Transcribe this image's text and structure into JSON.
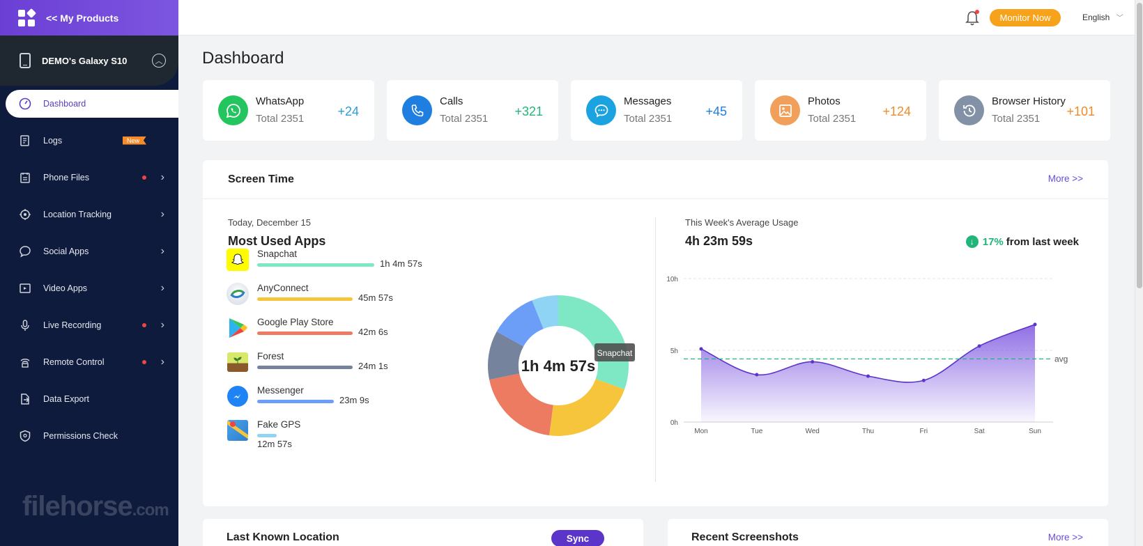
{
  "brand": {
    "title": "<< My Products"
  },
  "device": {
    "name": "DEMO's Galaxy S10"
  },
  "nav": [
    {
      "label": "Dashboard",
      "icon": "speedometer-icon",
      "active": true
    },
    {
      "label": "Logs",
      "icon": "log-icon",
      "badge": "New"
    },
    {
      "label": "Phone Files",
      "icon": "file-icon",
      "dot": true,
      "arrow": true
    },
    {
      "label": "Location Tracking",
      "icon": "location-icon",
      "arrow": true
    },
    {
      "label": "Social Apps",
      "icon": "chat-bubble-icon",
      "arrow": true
    },
    {
      "label": "Video Apps",
      "icon": "video-icon",
      "arrow": true
    },
    {
      "label": "Live Recording",
      "icon": "microphone-icon",
      "dot": true,
      "arrow": true
    },
    {
      "label": "Remote Control",
      "icon": "remote-icon",
      "dot": true,
      "arrow": true
    },
    {
      "label": "Data Export",
      "icon": "export-icon"
    },
    {
      "label": "Permissions Check",
      "icon": "shield-icon"
    }
  ],
  "watermark": {
    "text": "filehorse",
    "suffix": ".com"
  },
  "topbar": {
    "monitor_label": "Monitor Now",
    "language": "English"
  },
  "page_title": "Dashboard",
  "stats": [
    {
      "name": "WhatsApp",
      "total": "Total 2351",
      "delta": "+24",
      "color": "#22c55e",
      "delta_color": "#2a9fd8",
      "icon": "whatsapp-icon"
    },
    {
      "name": "Calls",
      "total": "Total 2351",
      "delta": "+321",
      "color": "#1e7fe0",
      "delta_color": "#22b57a",
      "icon": "phone-icon"
    },
    {
      "name": "Messages",
      "total": "Total 2351",
      "delta": "+45",
      "color": "#1aa3e0",
      "delta_color": "#1e7fe0",
      "icon": "message-icon"
    },
    {
      "name": "Photos",
      "total": "Total 2351",
      "delta": "+124",
      "color": "#f0a05a",
      "delta_color": "#f08a2a",
      "icon": "photo-icon"
    },
    {
      "name": "Browser History",
      "total": "Total 2351",
      "delta": "+101",
      "color": "#8391a6",
      "delta_color": "#f08a2a",
      "icon": "history-icon"
    }
  ],
  "screen_time": {
    "title": "Screen Time",
    "more": "More >>",
    "today": "Today, December 15",
    "most_used_title": "Most Used Apps",
    "apps": [
      {
        "name": "Snapchat",
        "time": "1h 4m 57s",
        "color": "#7de8c3",
        "icon": "snapchat-icon"
      },
      {
        "name": "AnyConnect",
        "time": "45m 57s",
        "color": "#f7c53b",
        "icon": "anyconnect-icon"
      },
      {
        "name": "Google Play Store",
        "time": "42m 6s",
        "color": "#ec7b62",
        "icon": "play-store-icon"
      },
      {
        "name": "Forest",
        "time": "24m 1s",
        "color": "#75839d",
        "icon": "forest-icon"
      },
      {
        "name": "Messenger",
        "time": "23m 9s",
        "color": "#6d9ef7",
        "icon": "messenger-icon"
      },
      {
        "name": "Fake GPS",
        "time": "12m 57s",
        "color": "#8fd3f5",
        "icon": "fake-gps-icon"
      }
    ],
    "donut_center": "1h 4m 57s",
    "donut_tooltip": "Snapchat",
    "week_label": "This Week's Average Usage",
    "week_value": "4h 23m 59s",
    "trend_pct": "17%",
    "trend_text": "from last week"
  },
  "chart_data": {
    "type": "area",
    "categories": [
      "Mon",
      "Tue",
      "Wed",
      "Thu",
      "Fri",
      "Sat",
      "Sun"
    ],
    "series": [
      {
        "values": [
          5.1,
          3.3,
          4.2,
          3.2,
          2.9,
          5.3,
          6.8
        ]
      }
    ],
    "y_ticks": [
      "10h",
      "5h",
      "0h"
    ],
    "ylim": [
      0,
      10
    ],
    "avg_value": 4.4,
    "avg_label": "avg",
    "grid": true
  },
  "last_location": {
    "title": "Last Known Location",
    "sync_label": "Sync"
  },
  "screenshots": {
    "title": "Recent Screenshots",
    "more": "More >>"
  }
}
